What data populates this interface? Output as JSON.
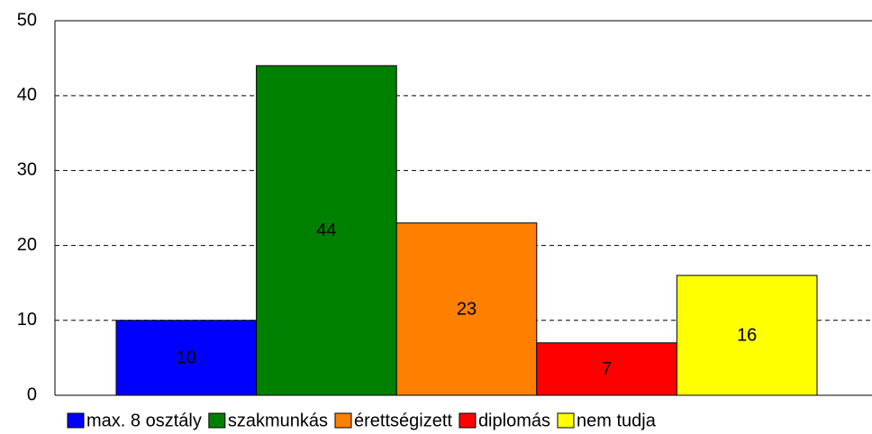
{
  "chart_data": {
    "type": "bar",
    "series": [
      {
        "name": "max. 8 osztály",
        "color": "#0000ff",
        "values": [
          10
        ]
      },
      {
        "name": "szakmunkás",
        "color": "#008000",
        "values": [
          44
        ]
      },
      {
        "name": "érettségizett",
        "color": "#ff8000",
        "values": [
          23
        ]
      },
      {
        "name": "diplomás",
        "color": "#ff0000",
        "values": [
          7
        ]
      },
      {
        "name": "nem tudja",
        "color": "#ffff00",
        "values": [
          16
        ]
      }
    ],
    "ylim": [
      0,
      50
    ],
    "yticks": [
      0,
      10,
      20,
      30,
      40,
      50
    ],
    "grid": true,
    "legend": "bottom"
  }
}
